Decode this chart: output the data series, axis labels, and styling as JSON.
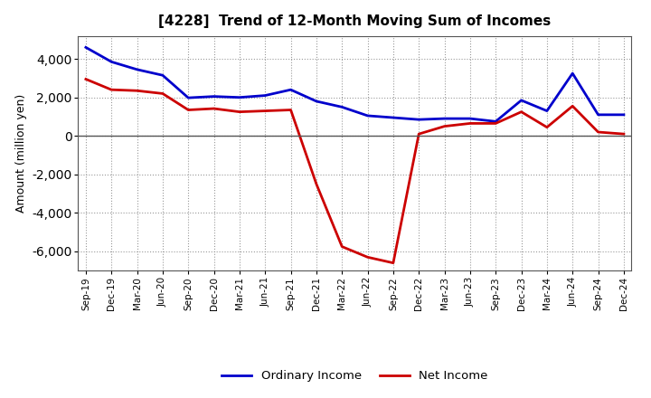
{
  "title": "[4228]  Trend of 12-Month Moving Sum of Incomes",
  "ylabel": "Amount (million yen)",
  "labels": [
    "Sep-19",
    "Dec-19",
    "Mar-20",
    "Jun-20",
    "Sep-20",
    "Dec-20",
    "Mar-21",
    "Jun-21",
    "Sep-21",
    "Dec-21",
    "Mar-22",
    "Jun-22",
    "Sep-22",
    "Dec-22",
    "Mar-23",
    "Jun-23",
    "Sep-23",
    "Dec-23",
    "Mar-24",
    "Jun-24",
    "Sep-24",
    "Dec-24"
  ],
  "ordinary_income": [
    4600,
    3850,
    3450,
    3150,
    1980,
    2050,
    2000,
    2100,
    2400,
    1800,
    1500,
    1050,
    950,
    850,
    900,
    900,
    750,
    1850,
    1300,
    3250,
    1100,
    1100
  ],
  "net_income": [
    2950,
    2400,
    2350,
    2200,
    1350,
    1420,
    1250,
    1300,
    1350,
    -2500,
    -5750,
    -6300,
    -6600,
    100,
    500,
    650,
    650,
    1250,
    450,
    1550,
    200,
    100
  ],
  "ordinary_color": "#0000cc",
  "net_color": "#cc0000",
  "background_color": "#ffffff",
  "grid_color": "#999999",
  "ylim": [
    -7000,
    5200
  ],
  "yticks": [
    -6000,
    -4000,
    -2000,
    0,
    2000,
    4000
  ],
  "legend_labels": [
    "Ordinary Income",
    "Net Income"
  ],
  "line_width": 2.0
}
